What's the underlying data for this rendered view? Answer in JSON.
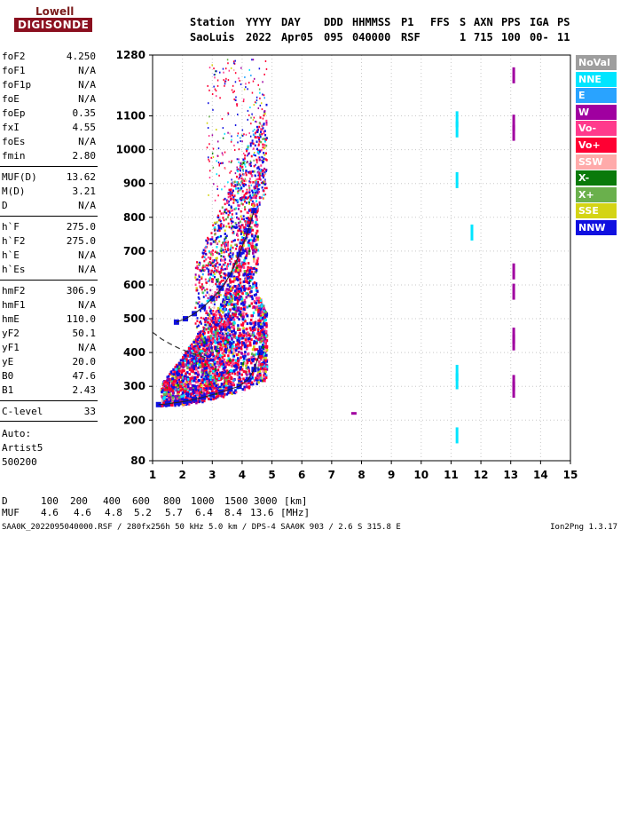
{
  "logo": {
    "line1": "Lowell",
    "line2": "DIGISONDE"
  },
  "header": {
    "labels": [
      "Station",
      "YYYY",
      "DAY",
      "DDD",
      "HHMMSS",
      "P1",
      "FFS",
      "S",
      "AXN",
      "PPS",
      "IGA",
      "PS"
    ],
    "values": [
      "SaoLuis",
      "2022",
      "Apr05",
      "095",
      "040000",
      "RSF",
      "1",
      "715",
      "100",
      "00-",
      "11"
    ]
  },
  "parameters": [
    {
      "name": "foF2",
      "value": "4.250"
    },
    {
      "name": "foF1",
      "value": "N/A"
    },
    {
      "name": "foF1p",
      "value": "N/A"
    },
    {
      "name": "foE",
      "value": "N/A"
    },
    {
      "name": "foEp",
      "value": "0.35"
    },
    {
      "name": "fxI",
      "value": "4.55"
    },
    {
      "name": "foEs",
      "value": "N/A"
    },
    {
      "name": "fmin",
      "value": "2.80"
    },
    {
      "name": "MUF(D)",
      "value": "13.62"
    },
    {
      "name": "M(D)",
      "value": "3.21"
    },
    {
      "name": "D",
      "value": "N/A"
    },
    {
      "name": "h`F",
      "value": "275.0"
    },
    {
      "name": "h`F2",
      "value": "275.0"
    },
    {
      "name": "h`E",
      "value": "N/A"
    },
    {
      "name": "h`Es",
      "value": "N/A"
    },
    {
      "name": "hmF2",
      "value": "306.9"
    },
    {
      "name": "hmF1",
      "value": "N/A"
    },
    {
      "name": "hmE",
      "value": "110.0"
    },
    {
      "name": "yF2",
      "value": "50.1"
    },
    {
      "name": "yF1",
      "value": "N/A"
    },
    {
      "name": "yE",
      "value": "20.0"
    },
    {
      "name": "B0",
      "value": "47.6"
    },
    {
      "name": "B1",
      "value": "2.43"
    },
    {
      "name": "C-level",
      "value": "33"
    }
  ],
  "autoscaler": {
    "line1": "Auto:",
    "line2": "Artist5",
    "line3": "500200"
  },
  "legend": [
    {
      "label": "NoVal",
      "color": "#9e9e9e"
    },
    {
      "label": "NNE",
      "color": "#00e5ff"
    },
    {
      "label": "E",
      "color": "#29a3ff"
    },
    {
      "label": "W",
      "color": "#a000a0"
    },
    {
      "label": "Vo-",
      "color": "#ff3a8c"
    },
    {
      "label": "Vo+",
      "color": "#ff0033"
    },
    {
      "label": "SSW",
      "color": "#ffaaaa"
    },
    {
      "label": "X-",
      "color": "#0a7a0a"
    },
    {
      "label": "X+",
      "color": "#6ab04c"
    },
    {
      "label": "SSE",
      "color": "#d4d414"
    },
    {
      "label": "NNW",
      "color": "#1010e0"
    }
  ],
  "muf_table": {
    "d_label": "D",
    "d_values": [
      "100",
      "200",
      "400",
      "600",
      "800",
      "1000",
      "1500",
      "3000"
    ],
    "d_unit": "[km]",
    "muf_label": "MUF",
    "muf_values": [
      "4.6",
      "4.6",
      "4.8",
      "5.2",
      "5.7",
      "6.4",
      "8.4",
      "13.6"
    ],
    "muf_unit": "[MHz]"
  },
  "footer": "SAA0K_2022095040000.RSF / 280fx256h 50 kHz 5.0 km / DPS-4 SAA0K 903 / 2.6 S 315.8 E",
  "version": "Ion2Png 1.3.17",
  "chart_data": {
    "type": "scatter",
    "title": "",
    "xlabel": "",
    "ylabel": "",
    "xlim": [
      1,
      15
    ],
    "ylim": [
      80,
      1280
    ],
    "x_ticks": [
      1,
      2,
      3,
      4,
      5,
      6,
      7,
      8,
      9,
      10,
      11,
      12,
      13,
      14,
      15
    ],
    "y_ticks": [
      80,
      200,
      300,
      400,
      500,
      600,
      700,
      800,
      900,
      1000,
      1100,
      1280
    ],
    "grid": true,
    "series": [
      {
        "name": "F-trace lower edge",
        "color_key": "NNW",
        "points": [
          [
            1.2,
            246
          ],
          [
            1.5,
            248
          ],
          [
            1.8,
            252
          ],
          [
            2.1,
            256
          ],
          [
            2.4,
            262
          ],
          [
            2.7,
            268
          ],
          [
            3.0,
            275
          ],
          [
            3.3,
            283
          ],
          [
            3.6,
            292
          ],
          [
            3.9,
            300
          ],
          [
            4.2,
            320
          ],
          [
            4.4,
            350
          ],
          [
            4.6,
            400
          ]
        ]
      },
      {
        "name": "second-hop trace",
        "color_key": "NNW",
        "points": [
          [
            1.8,
            490
          ],
          [
            2.1,
            500
          ],
          [
            2.4,
            515
          ],
          [
            2.7,
            535
          ],
          [
            3.0,
            560
          ],
          [
            3.3,
            590
          ],
          [
            3.6,
            630
          ],
          [
            3.9,
            690
          ],
          [
            4.2,
            760
          ],
          [
            4.4,
            820
          ]
        ]
      },
      {
        "name": "profile (dashed)",
        "color_key": "NoVal",
        "points": [
          [
            1.0,
            460
          ],
          [
            1.3,
            440
          ],
          [
            1.6,
            425
          ],
          [
            1.9,
            412
          ],
          [
            2.2,
            402
          ],
          [
            2.5,
            392
          ],
          [
            2.8,
            385
          ]
        ]
      },
      {
        "name": "W echoes at 13 MHz",
        "color_key": "W",
        "points": [
          [
            13.1,
            1220
          ],
          [
            13.1,
            1080
          ],
          [
            13.1,
            1050
          ],
          [
            13.1,
            640
          ],
          [
            13.1,
            580
          ],
          [
            13.1,
            450
          ],
          [
            13.1,
            430
          ],
          [
            13.1,
            310
          ],
          [
            13.1,
            290
          ],
          [
            7.7,
            220
          ]
        ]
      },
      {
        "name": "NNE echoes at 11.2 MHz",
        "color_key": "NNE",
        "points": [
          [
            11.2,
            1090
          ],
          [
            11.2,
            1060
          ],
          [
            11.2,
            910
          ],
          [
            11.2,
            340
          ],
          [
            11.2,
            315
          ],
          [
            11.2,
            155
          ],
          [
            11.7,
            755
          ]
        ]
      }
    ]
  }
}
